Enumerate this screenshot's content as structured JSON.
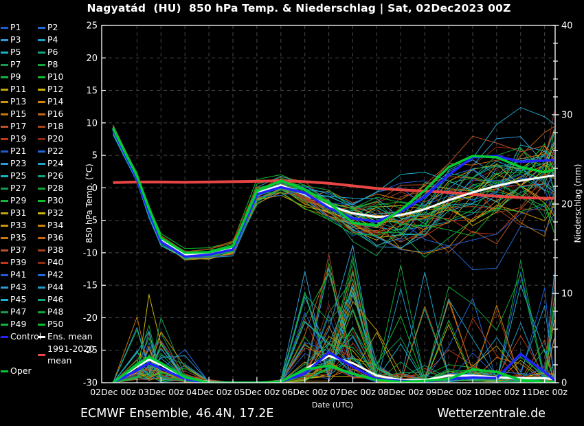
{
  "title": "Nagyatád  (HU)  850 hPa Temp. & Niederschlag | Sat, 02Dec2023 00Z",
  "footer": {
    "left": "ECMWF Ensemble, 46.4N, 17.2E",
    "right": "Wetterzentrale.de"
  },
  "colors": {
    "background": "#000000",
    "text": "#ffffff",
    "grid": "#4a4a4a",
    "axis": "#ffffff",
    "control": "#2222ff",
    "ens_mean": "#ffffff",
    "climate_mean": "#e84545",
    "oper": "#00cc33"
  },
  "legend": {
    "member_labels": [
      "P1",
      "P2",
      "P3",
      "P4",
      "P5",
      "P6",
      "P7",
      "P8",
      "P9",
      "P10",
      "P11",
      "P12",
      "P13",
      "P14",
      "P15",
      "P16",
      "P17",
      "P18",
      "P19",
      "P20",
      "P21",
      "P22",
      "P23",
      "P24",
      "P25",
      "P26",
      "P27",
      "P28",
      "P29",
      "P30",
      "P31",
      "P32",
      "P33",
      "P34",
      "P35",
      "P36",
      "P37",
      "P38",
      "P39",
      "P40",
      "P41",
      "P42",
      "P43",
      "P44",
      "P45",
      "P46",
      "P47",
      "P48",
      "P49",
      "P50"
    ],
    "palette20": [
      "#1e5ad2",
      "#2368d8",
      "#2e9ad8",
      "#1f9fc8",
      "#16b4c8",
      "#14a382",
      "#169b50",
      "#12a53c",
      "#16b43e",
      "#0cbe2e",
      "#bfa70e",
      "#ccb40c",
      "#c9960a",
      "#c9860a",
      "#c97708",
      "#c26618",
      "#bd5226",
      "#a8431e",
      "#bc3914",
      "#8f2a12"
    ],
    "control_label": "Control",
    "ens_mean_label": "Ens. mean",
    "climate_label_line1": "1991-2020",
    "climate_label_line2": "mean",
    "oper_label": "Oper"
  },
  "chart_data": {
    "type": "line",
    "title": "Nagyatád (HU) 850 hPa Temp. & Niederschlag | Sat, 02Dec2023 00Z",
    "x_axis": {
      "label": "Date (UTC)",
      "tick_labels": [
        "02Dec 00z",
        "03Dec 00z",
        "04Dec 00z",
        "05Dec 00z",
        "06Dec 00z",
        "07Dec 00z",
        "08Dec 00z",
        "09Dec 00z",
        "10Dec 00z",
        "11Dec 00z"
      ],
      "tick_days": [
        0,
        1,
        2,
        3,
        4,
        5,
        6,
        7,
        8,
        9
      ],
      "minor_grid_hours": 12,
      "range_days": [
        0,
        9.2
      ]
    },
    "y_left": {
      "label": "850 hPa Temp. (°C)",
      "ticks": [
        25,
        20,
        15,
        10,
        5,
        0,
        -5,
        -10,
        -15,
        -20,
        -25,
        -30
      ],
      "range": [
        -30,
        25
      ],
      "grid": true
    },
    "y_right": {
      "label": "Niederschlag (mm)",
      "ticks": [
        0,
        10,
        20,
        30,
        40
      ],
      "minor_step": 2,
      "range": [
        0,
        40
      ]
    },
    "t_days": [
      0,
      0.5,
      0.75,
      1,
      1.5,
      2,
      2.5,
      3,
      3.5,
      4,
      4.5,
      5,
      5.5,
      6,
      6.5,
      7,
      7.5,
      8,
      8.5,
      9,
      9.2
    ],
    "series": {
      "ens_mean_temp": [
        9.0,
        1.5,
        -3.5,
        -8.0,
        -10.3,
        -10.1,
        -9.3,
        -0.8,
        0.4,
        -1.0,
        -2.8,
        -3.9,
        -4.5,
        -4.2,
        -3.3,
        -1.9,
        -0.7,
        0.3,
        1.1,
        1.7,
        1.9
      ],
      "control_temp": [
        9.0,
        1.3,
        -3.8,
        -8.3,
        -10.6,
        -10.3,
        -9.5,
        -1.0,
        0.1,
        -0.8,
        -3.1,
        -4.7,
        -5.2,
        -3.7,
        -1.4,
        2.0,
        4.7,
        4.9,
        4.0,
        4.2,
        4.3
      ],
      "oper_temp": [
        9.2,
        1.8,
        -3.2,
        -7.7,
        -10.0,
        -9.9,
        -9.0,
        -0.5,
        1.1,
        -0.3,
        -2.3,
        -5.4,
        -5.8,
        -3.4,
        -0.4,
        3.2,
        4.9,
        4.7,
        3.2,
        2.4,
        2.8
      ],
      "climate_mean_temp": [
        0.8,
        0.9,
        0.9,
        0.9,
        0.85,
        0.9,
        0.95,
        1.0,
        1.1,
        0.95,
        0.7,
        0.3,
        -0.1,
        -0.3,
        -0.5,
        -0.7,
        -1.0,
        -1.3,
        -1.5,
        -1.6,
        -1.6
      ],
      "ens_mean_precip": [
        0,
        1.8,
        2.6,
        2.0,
        0.5,
        0.1,
        0,
        0,
        0.1,
        1.5,
        3.0,
        2.2,
        0.8,
        0.3,
        0.3,
        0.8,
        0.8,
        0.6,
        0.5,
        0.5,
        0.4
      ],
      "control_precip": [
        0,
        1.4,
        2.2,
        1.6,
        0.4,
        0,
        0,
        0,
        0.1,
        1.0,
        3.4,
        1.8,
        0.4,
        0.2,
        0.1,
        0.4,
        0.6,
        0.5,
        3.2,
        1.2,
        0.3
      ],
      "oper_precip": [
        0,
        2.0,
        2.9,
        2.2,
        0.6,
        0,
        0,
        0,
        0.1,
        1.5,
        1.9,
        1.0,
        0.3,
        0.1,
        0.2,
        0.4,
        1.5,
        1.2,
        0.3,
        0.1,
        0
      ]
    },
    "ensemble": {
      "count": 50,
      "seed": 20231202,
      "temp_spread_sd": [
        0.35,
        0.35,
        0.38,
        0.4,
        0.45,
        0.5,
        0.6,
        0.9,
        1.1,
        1.3,
        1.6,
        2.0,
        2.3,
        2.7,
        3.1,
        3.4,
        3.7,
        4.0,
        4.2,
        4.4,
        4.5
      ],
      "precip_gain_sd": 0.95,
      "precip_spike_zones": [
        {
          "t0": 3.9,
          "t1": 5.1,
          "prob": 0.3,
          "amp": 12
        },
        {
          "t0": 5.9,
          "t1": 6.6,
          "prob": 0.06,
          "amp": 15
        },
        {
          "t0": 6.9,
          "t1": 8.1,
          "prob": 0.16,
          "amp": 11
        },
        {
          "t0": 8.4,
          "t1": 9.2,
          "prob": 0.14,
          "amp": 12
        }
      ],
      "precip_cap_mm": 15.4
    }
  }
}
